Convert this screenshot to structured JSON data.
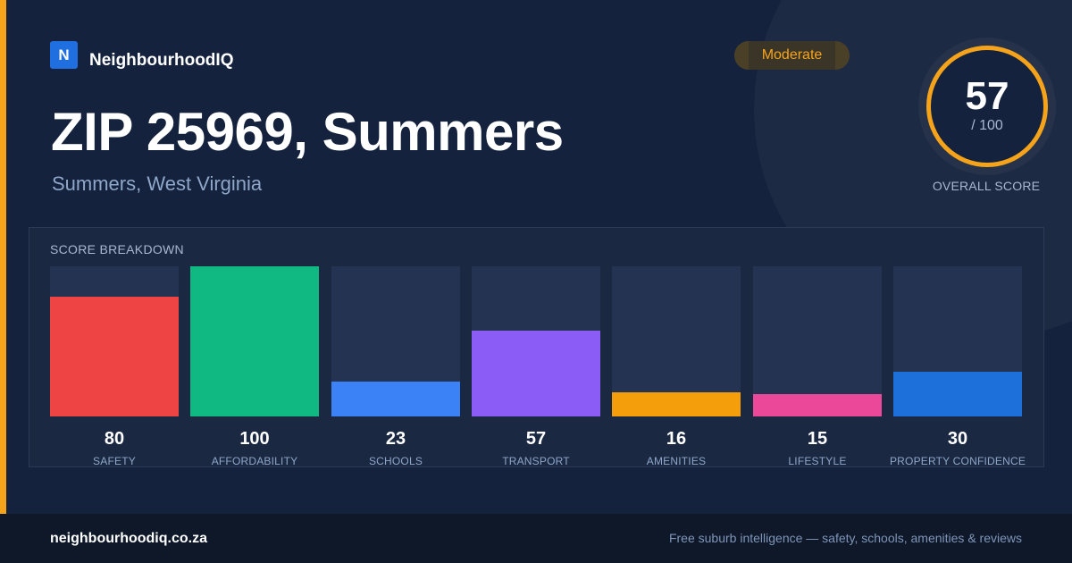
{
  "brand": {
    "logo_letter": "N",
    "name": "NeighbourhoodIQ"
  },
  "badge": {
    "label": "Moderate",
    "color": "#f5a31a"
  },
  "header": {
    "title": "ZIP 25969, Summers",
    "subtitle": "Summers, West Virginia"
  },
  "overall": {
    "score": "57",
    "max": "/ 100",
    "caption": "OVERALL SCORE"
  },
  "breakdown": {
    "title": "SCORE BREAKDOWN",
    "items": [
      {
        "label": "SAFETY",
        "value": "80",
        "percent": 80,
        "color": "#ef4444"
      },
      {
        "label": "AFFORDABILITY",
        "value": "100",
        "percent": 100,
        "color": "#10b981"
      },
      {
        "label": "SCHOOLS",
        "value": "23",
        "percent": 23,
        "color": "#3b82f6"
      },
      {
        "label": "TRANSPORT",
        "value": "57",
        "percent": 57,
        "color": "#8b5cf6"
      },
      {
        "label": "AMENITIES",
        "value": "16",
        "percent": 16,
        "color": "#f59e0b"
      },
      {
        "label": "LIFESTYLE",
        "value": "15",
        "percent": 15,
        "color": "#ec4899"
      },
      {
        "label": "PROPERTY CONFIDENCE",
        "value": "30",
        "percent": 30,
        "color": "#1d6fd9"
      }
    ]
  },
  "footer": {
    "site": "neighbourhoodiq.co.za",
    "tagline": "Free suburb intelligence — safety, schools, amenities & reviews"
  }
}
